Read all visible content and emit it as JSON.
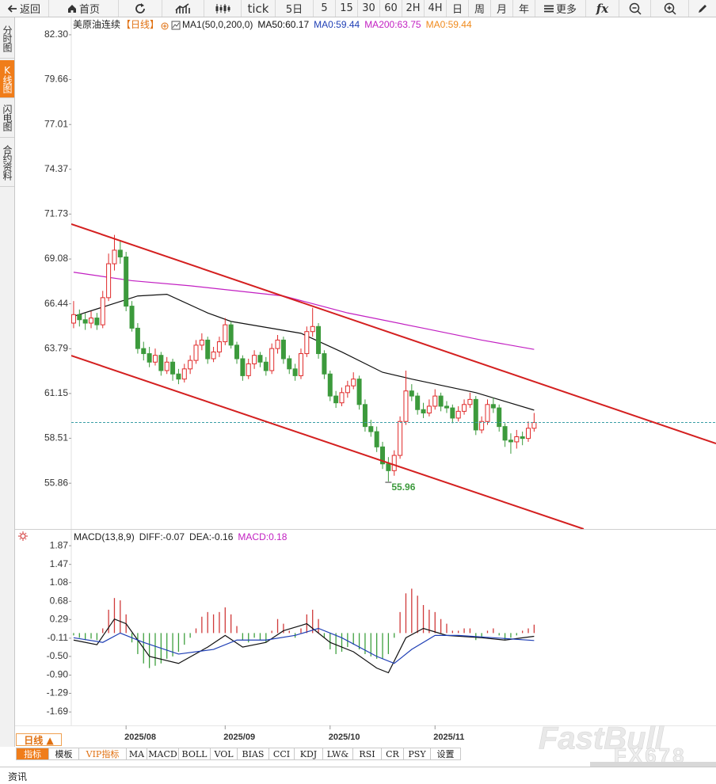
{
  "toolbar": [
    "返回",
    "首页",
    "tick",
    "5日",
    "5",
    "15",
    "30",
    "60",
    "2H",
    "4H",
    "日",
    "周",
    "月",
    "年",
    "更多",
    "fx"
  ],
  "side_tabs": [
    "分时图",
    "K线图",
    "闪电图",
    "合约资料"
  ],
  "chart_data": [
    {
      "type": "candlestick",
      "title": "美原油连续",
      "period": "【日线】",
      "indicator": "MA1(50,0,200,0)",
      "legend_extra": [
        {
          "label": "MA0:59.44",
          "color": "#1f3fb5"
        },
        {
          "label": "MA0:59.44",
          "color": "#f08a1c"
        }
      ],
      "up_color": "#e02a2a",
      "down_color": "#3c9a3c",
      "candles": [
        [
          65.3,
          66.6,
          65.0,
          65.8
        ],
        [
          65.8,
          66.1,
          65.1,
          65.5
        ],
        [
          65.5,
          65.9,
          64.9,
          65.3
        ],
        [
          65.3,
          66.0,
          65.0,
          65.6
        ],
        [
          65.6,
          65.9,
          64.9,
          65.2
        ],
        [
          65.2,
          67.2,
          65.0,
          66.8
        ],
        [
          66.8,
          69.4,
          66.6,
          68.8
        ],
        [
          68.8,
          70.5,
          68.4,
          69.6
        ],
        [
          69.6,
          70.2,
          68.8,
          69.2
        ],
        [
          69.2,
          69.5,
          66.0,
          66.3
        ],
        [
          66.3,
          66.6,
          64.8,
          65.0
        ],
        [
          65.0,
          65.3,
          63.5,
          63.8
        ],
        [
          63.8,
          64.2,
          63.1,
          63.5
        ],
        [
          63.5,
          63.9,
          62.7,
          63.0
        ],
        [
          63.0,
          63.8,
          62.8,
          63.4
        ],
        [
          63.4,
          63.6,
          62.2,
          62.5
        ],
        [
          62.5,
          63.3,
          62.3,
          63.0
        ],
        [
          63.0,
          63.2,
          61.9,
          62.3
        ],
        [
          62.3,
          62.6,
          61.7,
          62.0
        ],
        [
          62.0,
          62.9,
          61.8,
          62.6
        ],
        [
          62.6,
          63.4,
          62.3,
          63.1
        ],
        [
          63.1,
          64.3,
          62.9,
          64.0
        ],
        [
          64.0,
          64.7,
          63.7,
          64.3
        ],
        [
          64.3,
          64.5,
          62.9,
          63.2
        ],
        [
          63.2,
          63.9,
          63.0,
          63.6
        ],
        [
          63.6,
          64.5,
          63.3,
          64.2
        ],
        [
          64.2,
          65.6,
          64.0,
          65.2
        ],
        [
          65.2,
          65.4,
          63.8,
          64.0
        ],
        [
          64.0,
          64.2,
          62.9,
          63.2
        ],
        [
          63.2,
          63.4,
          61.9,
          62.2
        ],
        [
          62.2,
          63.2,
          62.0,
          62.9
        ],
        [
          62.9,
          63.7,
          62.6,
          63.4
        ],
        [
          63.4,
          63.6,
          62.7,
          63.0
        ],
        [
          63.0,
          63.3,
          62.2,
          62.5
        ],
        [
          62.5,
          64.1,
          62.3,
          63.8
        ],
        [
          63.8,
          64.6,
          63.5,
          64.3
        ],
        [
          64.3,
          64.5,
          62.9,
          63.2
        ],
        [
          63.2,
          63.4,
          62.3,
          62.6
        ],
        [
          62.6,
          62.9,
          61.9,
          62.2
        ],
        [
          62.2,
          63.8,
          62.0,
          63.5
        ],
        [
          63.5,
          65.1,
          63.3,
          64.8
        ],
        [
          64.8,
          66.2,
          64.5,
          65.1
        ],
        [
          65.1,
          65.3,
          63.2,
          63.5
        ],
        [
          63.5,
          63.7,
          62.0,
          62.3
        ],
        [
          62.3,
          62.5,
          60.7,
          61.0
        ],
        [
          61.0,
          61.3,
          60.3,
          60.6
        ],
        [
          60.6,
          61.5,
          60.4,
          61.2
        ],
        [
          61.2,
          61.9,
          60.9,
          61.6
        ],
        [
          61.6,
          62.4,
          61.4,
          62.0
        ],
        [
          62.0,
          62.2,
          60.2,
          60.5
        ],
        [
          60.5,
          60.8,
          58.9,
          59.2
        ],
        [
          59.2,
          59.6,
          58.6,
          58.9
        ],
        [
          58.9,
          59.2,
          57.7,
          58.0
        ],
        [
          58.0,
          58.3,
          56.7,
          57.0
        ],
        [
          57.0,
          57.4,
          55.96,
          56.6
        ],
        [
          56.6,
          57.8,
          56.3,
          57.5
        ],
        [
          57.5,
          59.8,
          57.3,
          59.5
        ],
        [
          59.5,
          62.5,
          59.3,
          61.3
        ],
        [
          61.3,
          61.7,
          60.7,
          61.0
        ],
        [
          61.0,
          61.2,
          59.9,
          60.2
        ],
        [
          60.2,
          60.6,
          59.7,
          60.0
        ],
        [
          60.0,
          60.8,
          59.8,
          60.4
        ],
        [
          60.4,
          61.4,
          60.2,
          61.0
        ],
        [
          61.0,
          61.2,
          60.1,
          60.4
        ],
        [
          60.4,
          60.7,
          60.0,
          60.3
        ],
        [
          60.3,
          60.5,
          59.4,
          59.7
        ],
        [
          59.7,
          60.4,
          59.5,
          60.1
        ],
        [
          60.1,
          60.8,
          59.9,
          60.5
        ],
        [
          60.5,
          61.2,
          60.3,
          60.8
        ],
        [
          60.8,
          61.0,
          58.7,
          59.0
        ],
        [
          59.0,
          59.8,
          58.8,
          59.5
        ],
        [
          59.5,
          60.8,
          59.3,
          60.5
        ],
        [
          60.5,
          60.9,
          60.0,
          60.3
        ],
        [
          60.3,
          60.5,
          58.9,
          59.2
        ],
        [
          59.2,
          59.4,
          58.0,
          58.4
        ],
        [
          58.4,
          58.8,
          57.6,
          58.3
        ],
        [
          58.3,
          59.0,
          57.9,
          58.6
        ],
        [
          58.6,
          58.9,
          58.1,
          58.5
        ],
        [
          58.5,
          59.5,
          58.3,
          59.1
        ],
        [
          59.1,
          60.0,
          58.9,
          59.44
        ]
      ],
      "series": [
        {
          "name": "MA50:60.17",
          "color": "#111111",
          "x": [
            0,
            11,
            16,
            23,
            27,
            39,
            46,
            53,
            58,
            69,
            79
          ],
          "values": [
            65.7,
            66.9,
            67.0,
            65.9,
            65.4,
            64.7,
            63.6,
            62.4,
            62.0,
            61.2,
            60.17
          ]
        },
        {
          "name": "MA200:63.75",
          "color": "#c21fc2",
          "x": [
            0,
            10,
            20,
            36,
            47,
            60,
            70,
            79
          ],
          "values": [
            68.3,
            67.8,
            67.5,
            66.9,
            65.9,
            65.0,
            64.3,
            63.75
          ]
        }
      ],
      "trendlines": [
        {
          "color": "#d42020",
          "x": [
            -0.4,
            110.2
          ],
          "values": [
            71.14,
            58.2
          ]
        },
        {
          "color": "#d42020",
          "x": [
            -0.4,
            87.5
          ],
          "values": [
            63.38,
            53.16
          ]
        }
      ],
      "last_price": 59.44,
      "last_price_color": "#3a9fa6",
      "low_annotation": {
        "index": 54,
        "value": 55.96,
        "label": "55.96",
        "color": "#3c9a3c"
      },
      "xlim": [
        -0.4,
        110.2
      ],
      "ylim": [
        53.16,
        82.95
      ],
      "yticks": [
        {
          "value": 82.3,
          "label": "82.30"
        },
        79.66,
        77.01,
        74.37,
        71.73,
        69.08,
        66.44,
        63.79,
        61.15,
        58.51,
        55.86
      ]
    },
    {
      "type": "macd",
      "title": "MACD(13,8,9)",
      "up_color": "#d03a3a",
      "down_color": "#3fa03f",
      "histogram_name": "MACD:0.18",
      "histogram_color": "#c21fc2",
      "histogram": [
        -0.05,
        -0.1,
        -0.15,
        -0.12,
        -0.15,
        0.1,
        0.5,
        0.75,
        0.7,
        0.4,
        -0.2,
        -0.45,
        -0.65,
        -0.75,
        -0.7,
        -0.65,
        -0.55,
        -0.5,
        -0.4,
        -0.25,
        -0.1,
        0.1,
        0.35,
        0.45,
        0.4,
        0.45,
        0.55,
        0.4,
        0.15,
        -0.15,
        -0.2,
        -0.1,
        -0.15,
        -0.2,
        0.05,
        0.3,
        0.2,
        0.05,
        -0.1,
        0.1,
        0.4,
        0.5,
        0.3,
        -0.1,
        -0.35,
        -0.45,
        -0.4,
        -0.3,
        -0.25,
        -0.35,
        -0.45,
        -0.5,
        -0.55,
        -0.55,
        -0.45,
        -0.1,
        0.45,
        0.85,
        0.95,
        0.8,
        0.6,
        0.5,
        0.45,
        0.3,
        0.2,
        0.05,
        0.05,
        0.1,
        0.1,
        -0.15,
        -0.1,
        0.05,
        0.1,
        -0.05,
        -0.15,
        -0.1,
        -0.05,
        0.05,
        0.1,
        0.18
      ],
      "series": [
        {
          "name": "DIFF:-0.07",
          "color": "#111111",
          "x": [
            0,
            4,
            7,
            9,
            13,
            18,
            23,
            26,
            29,
            33,
            36,
            40,
            44,
            48,
            52,
            54,
            57,
            60,
            64,
            70,
            74,
            79
          ],
          "values": [
            -0.15,
            -0.25,
            0.3,
            0.2,
            -0.5,
            -0.65,
            -0.3,
            -0.05,
            -0.3,
            -0.2,
            0.05,
            0.2,
            -0.2,
            -0.4,
            -0.75,
            -0.85,
            -0.1,
            0.1,
            -0.05,
            -0.1,
            -0.15,
            -0.07
          ]
        },
        {
          "name": "DEA:-0.16",
          "color": "#1f3fb5",
          "x": [
            0,
            5,
            8,
            12,
            18,
            24,
            28,
            33,
            38,
            42,
            46,
            52,
            55,
            58,
            62,
            66,
            72,
            79
          ],
          "values": [
            -0.1,
            -0.2,
            0.0,
            -0.2,
            -0.45,
            -0.35,
            -0.15,
            -0.15,
            -0.05,
            0.1,
            -0.1,
            -0.5,
            -0.65,
            -0.35,
            -0.05,
            -0.05,
            -0.1,
            -0.16
          ]
        }
      ],
      "ylim": [
        -1.96,
        2.16
      ],
      "yticks": [
        1.87,
        1.47,
        1.08,
        0.68,
        0.29,
        -0.11,
        {
          "value": -0.5,
          "label": "-0.50"
        },
        {
          "value": -0.9,
          "label": "-0.90"
        },
        -1.29,
        -1.69
      ],
      "xticks": [
        {
          "value": 9,
          "label": "2025/08"
        },
        {
          "value": 26,
          "label": "2025/09"
        },
        {
          "value": 44,
          "label": "2025/10"
        },
        {
          "value": 62,
          "label": "2025/11"
        }
      ]
    }
  ],
  "period_button": "日线 ▲",
  "bottom_tabs": [
    "指标",
    "模板",
    "VIP指标",
    "MA",
    "MACD",
    "BOLL",
    "VOL",
    "BIAS",
    "CCI",
    "KDJ",
    "LW&",
    "RSI",
    "CR",
    "PSY",
    "设置"
  ],
  "footer": "资讯",
  "watermark": [
    "FastBull",
    "FX678"
  ]
}
